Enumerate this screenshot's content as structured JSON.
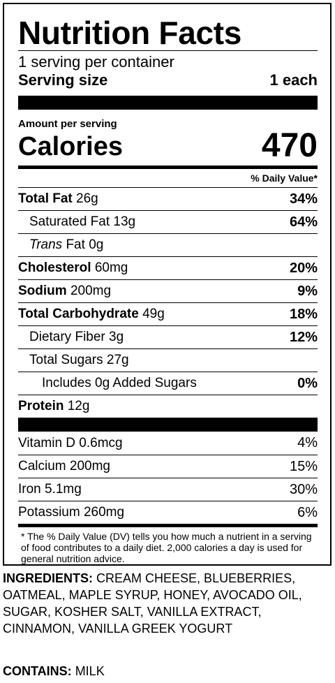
{
  "label": {
    "title": "Nutrition Facts",
    "servings_per_container": "1 serving per container",
    "serving_size_label": "Serving size",
    "serving_size_value": "1 each",
    "amount_per_serving": "Amount per serving",
    "calories_label": "Calories",
    "calories_value": "470",
    "dv_header": "% Daily Value*",
    "nutrients": [
      {
        "name": "Total Fat",
        "amount": "26g",
        "dv": "34%"
      },
      {
        "name": "Saturated Fat",
        "amount": "13g",
        "dv": "64%"
      },
      {
        "name_italic": "Trans",
        "name": "Fat",
        "amount": "0g",
        "dv": ""
      },
      {
        "name": "Cholesterol",
        "amount": "60mg",
        "dv": "20%"
      },
      {
        "name": "Sodium",
        "amount": "200mg",
        "dv": "9%"
      },
      {
        "name": "Total Carbohydrate",
        "amount": "49g",
        "dv": "18%"
      },
      {
        "name": "Dietary Fiber",
        "amount": "3g",
        "dv": "12%"
      },
      {
        "name": "Total Sugars",
        "amount": "27g",
        "dv": ""
      },
      {
        "text": "Includes 0g Added Sugars",
        "dv": "0%"
      },
      {
        "name": "Protein",
        "amount": "12g",
        "dv": ""
      }
    ],
    "vitamins": [
      {
        "text": "Vitamin D 0.6mcg",
        "dv": "4%"
      },
      {
        "text": "Calcium 200mg",
        "dv": "15%"
      },
      {
        "text": "Iron 5.1mg",
        "dv": "30%"
      },
      {
        "text": "Potassium 260mg",
        "dv": "6%"
      }
    ],
    "footnote": "* The % Daily Value (DV) tells you how much a nutrient in a serving of food contributes to a daily diet. 2,000 calories a day is used for general nutrition advice."
  },
  "ingredients": {
    "heading": "INGREDIENTS:",
    "text": "CREAM CHEESE, BLUEBERRIES, OATMEAL, MAPLE SYRUP, HONEY, AVOCADO OIL, SUGAR, KOSHER SALT, VANILLA EXTRACT, CINNAMON, VANILLA GREEK YOGURT"
  },
  "contains": {
    "heading": "CONTAINS:",
    "text": "MILK"
  }
}
